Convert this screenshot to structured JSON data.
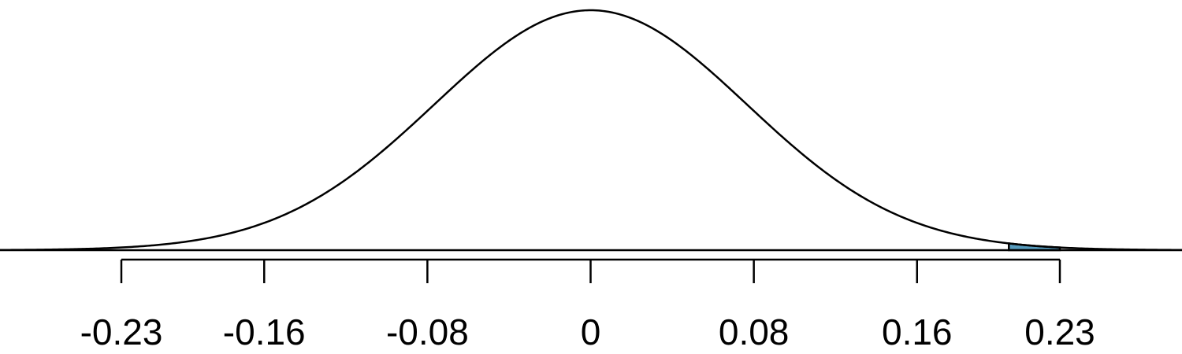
{
  "chart_data": {
    "type": "area",
    "title": "",
    "xlabel": "",
    "ylabel": "",
    "distribution": "normal",
    "mean": 0,
    "sd": 0.0767,
    "xlim": [
      -0.3,
      0.3
    ],
    "x_ticks": [
      -0.23,
      -0.16,
      -0.08,
      0,
      0.08,
      0.16,
      0.23
    ],
    "x_tick_labels": [
      "-0.23",
      "-0.16",
      "-0.08",
      "0",
      "0.08",
      "0.16",
      "0.23"
    ],
    "shaded_region": {
      "from": 0.205,
      "to": 0.23,
      "tail": "upper"
    },
    "colors": {
      "curve": "#000000",
      "shade": "#569BBD",
      "axis": "#000000"
    },
    "grid": false,
    "legend": "none"
  }
}
